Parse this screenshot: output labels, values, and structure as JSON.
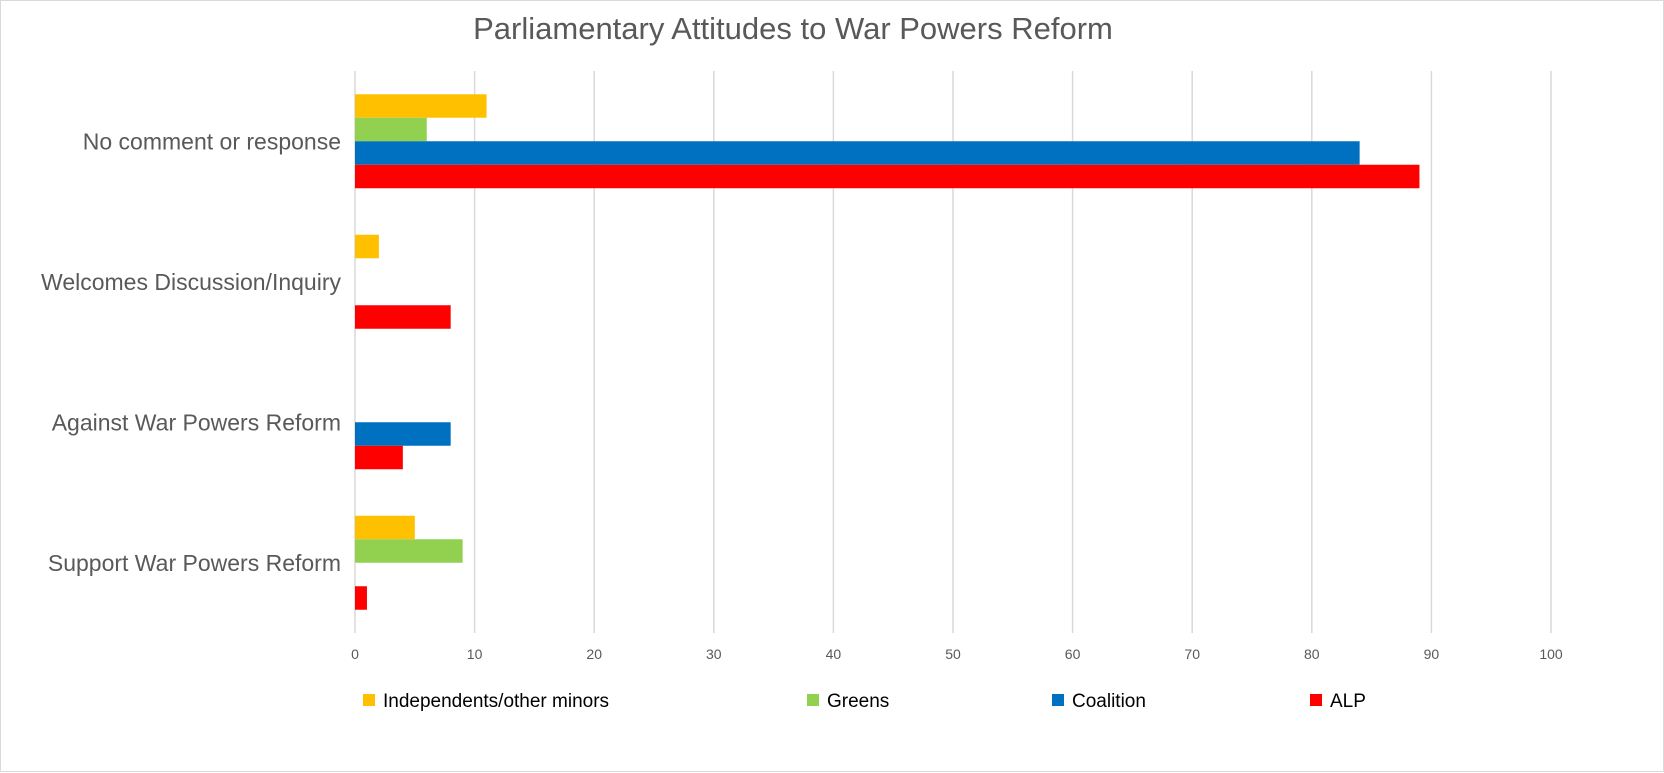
{
  "chart_data": {
    "type": "bar",
    "orientation": "horizontal",
    "title": "Parliamentary Attitudes to War Powers Reform",
    "xlabel": "",
    "ylabel": "",
    "categories": [
      "No comment or response",
      "Welcomes Discussion/Inquiry",
      "Against War Powers Reform",
      "Support War Powers Reform"
    ],
    "series": [
      {
        "name": "Independents/other minors",
        "color": "#FFC000",
        "values": [
          11,
          2,
          0,
          5
        ]
      },
      {
        "name": "Greens",
        "color": "#92D050",
        "values": [
          6,
          0,
          0,
          9
        ]
      },
      {
        "name": "Coalition",
        "color": "#0070C0",
        "values": [
          84,
          0,
          8,
          0
        ]
      },
      {
        "name": "ALP",
        "color": "#FF0000",
        "values": [
          89,
          8,
          4,
          1
        ]
      }
    ],
    "xlim": [
      0,
      100
    ],
    "xticks": [
      0,
      10,
      20,
      30,
      40,
      50,
      60,
      70,
      80,
      90,
      100
    ],
    "grid": true,
    "legend_position": "bottom"
  }
}
